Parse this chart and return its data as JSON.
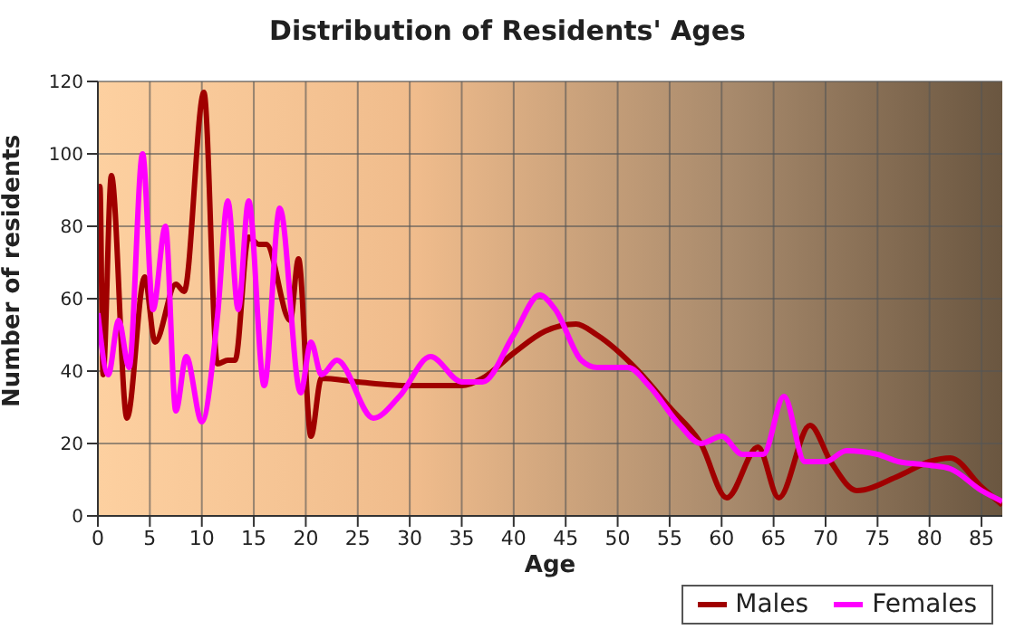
{
  "chart_data": {
    "type": "line",
    "title": "Distribution of Residents' Ages",
    "xlabel": "Age",
    "ylabel": "Number of residents",
    "xlim": [
      0,
      87
    ],
    "xticks": [
      0,
      5,
      10,
      15,
      20,
      25,
      30,
      35,
      40,
      45,
      50,
      55,
      60,
      65,
      70,
      75,
      80,
      85
    ],
    "ylim": [
      0,
      120
    ],
    "yticks": [
      0,
      20,
      40,
      60,
      80,
      100,
      120
    ],
    "grid": true,
    "legend": "bottom right",
    "marker": "none",
    "line_style": "solid",
    "series": [
      {
        "name": "Males",
        "color": "#a00000",
        "x": [
          0,
          0.2,
          0.5,
          1.3,
          2.8,
          4.5,
          5.5,
          7.5,
          8.3,
          10.2,
          11.5,
          12.5,
          13.2,
          14.5,
          15.5,
          16.2,
          18.5,
          19.3,
          20.5,
          21.5,
          25,
          30,
          35,
          37,
          40,
          43,
          46,
          48,
          52,
          55,
          58,
          60.5,
          63.5,
          65.5,
          68.5,
          70.5,
          73,
          77,
          80,
          82,
          85,
          87
        ],
        "values": [
          78,
          91,
          39,
          94,
          27,
          66,
          48,
          64,
          62,
          117,
          42,
          43,
          43,
          77,
          75,
          75,
          54,
          71,
          22,
          38,
          37,
          36,
          36,
          38,
          45,
          51,
          53,
          50,
          40,
          30,
          20,
          5,
          19,
          5,
          25,
          15,
          7,
          11,
          15,
          16,
          8,
          3
        ]
      },
      {
        "name": "Females",
        "color": "#ff00ff",
        "x": [
          0,
          1,
          2,
          3,
          4.3,
          5.3,
          6.5,
          7.5,
          8.5,
          10,
          11.5,
          12.5,
          13.5,
          14.5,
          16,
          17.5,
          19.5,
          20.5,
          21.5,
          23,
          26.5,
          29,
          32,
          35,
          37,
          40,
          42.5,
          44,
          46.5,
          48,
          51,
          53,
          56,
          58,
          60,
          62,
          64,
          66,
          68,
          70,
          72,
          75,
          77,
          80,
          82,
          85,
          87
        ],
        "values": [
          56,
          39,
          54,
          41,
          100,
          57,
          80,
          29,
          44,
          26,
          55,
          87,
          57,
          87,
          36,
          85,
          34,
          48,
          39,
          43,
          27,
          33,
          44,
          37,
          37,
          50,
          61,
          57,
          43,
          41,
          41,
          36,
          25,
          20,
          22,
          17,
          17,
          33,
          15,
          15,
          18,
          17,
          15,
          14,
          13,
          7,
          4
        ]
      }
    ]
  }
}
